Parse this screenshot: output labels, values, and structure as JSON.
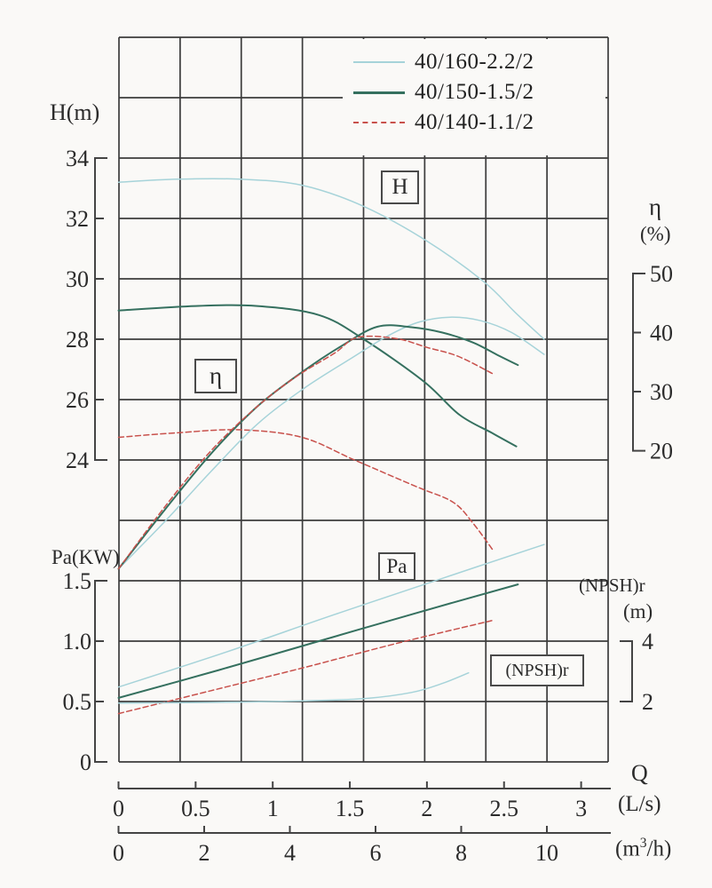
{
  "legend": {
    "items": [
      {
        "label": "40/160-2.2/2",
        "color": "#a6d3d9",
        "style": "solid",
        "weight": 2
      },
      {
        "label": "40/150-1.5/2",
        "color": "#35705f",
        "style": "solid",
        "weight": 3
      },
      {
        "label": "40/140-1.1/2",
        "color": "#c8514c",
        "style": "dashed",
        "weight": 2
      }
    ]
  },
  "labels": {
    "h_box": "H",
    "eta_box": "η",
    "pa_box": "Pa",
    "npshr_box": "(NPSH)r"
  },
  "axes": {
    "head": {
      "title": "H(m)",
      "ticks": [
        "34",
        "32",
        "30",
        "28",
        "26",
        "24"
      ]
    },
    "power": {
      "title": "Pa(KW)",
      "ticks": [
        "1.5",
        "1.0",
        "0.5",
        "0"
      ]
    },
    "efficiency": {
      "title": "η",
      "unit": "(%)",
      "ticks": [
        "50",
        "40",
        "30",
        "20"
      ]
    },
    "npshr": {
      "title": "(NPSH)r",
      "unit": "(m)",
      "ticks": [
        "4",
        "2"
      ]
    },
    "flow": {
      "title": "Q",
      "unit_ls": "(L/s)",
      "ticks_ls": [
        "0",
        "0.5",
        "1",
        "1.5",
        "2",
        "2.5",
        "3"
      ],
      "unit_m3h_prefix": "(m",
      "unit_m3h_sup": "3",
      "unit_m3h_suffix": "/h)",
      "ticks_m3h": [
        "0",
        "2",
        "4",
        "6",
        "8",
        "10"
      ]
    }
  },
  "chart_data": {
    "type": "line",
    "title": "",
    "x_axis": {
      "label": "Q",
      "units": [
        "L/s",
        "m3/h"
      ],
      "range_ls": [
        0,
        3.17
      ],
      "ticks_ls": [
        0,
        0.5,
        1,
        1.5,
        2,
        2.5,
        3
      ],
      "ticks_m3h": [
        0,
        2,
        4,
        6,
        8,
        10
      ]
    },
    "y_axes": [
      {
        "id": "H",
        "label": "H(m)",
        "ticks": [
          34,
          32,
          30,
          28,
          26,
          24
        ]
      },
      {
        "id": "Pa",
        "label": "Pa(KW)",
        "ticks": [
          1.5,
          1.0,
          0.5,
          0
        ]
      },
      {
        "id": "eta",
        "label": "eta (%)",
        "ticks": [
          50,
          40,
          30,
          20
        ]
      },
      {
        "id": "NPSHr",
        "label": "(NPSH)r (m)",
        "ticks": [
          4,
          2
        ]
      }
    ],
    "grid": "on",
    "legend_position": "top-right",
    "series": [
      {
        "pump": "40/160-2.2/2",
        "quantity": "H",
        "color": "#a6d3d9",
        "dash": false,
        "width": 1.5,
        "Q": [
          0,
          0.38,
          0.79,
          1.19,
          1.59,
          2.0,
          2.37,
          2.57,
          2.76
        ],
        "values": [
          33.2,
          33.3,
          33.3,
          33.1,
          32.4,
          31.25,
          29.9,
          28.9,
          28.0
        ]
      },
      {
        "pump": "40/150-1.5/2",
        "quantity": "H",
        "color": "#35705f",
        "dash": false,
        "width": 2,
        "Q": [
          0,
          0.5,
          0.9,
          1.3,
          1.59,
          1.98,
          2.21,
          2.42,
          2.58
        ],
        "values": [
          28.95,
          29.1,
          29.1,
          28.8,
          28.0,
          26.6,
          25.5,
          24.9,
          24.45
        ]
      },
      {
        "pump": "40/140-1.1/2",
        "quantity": "H",
        "color": "#c8514c",
        "dash": true,
        "width": 1.5,
        "Q": [
          0,
          0.38,
          0.79,
          1.19,
          1.53,
          1.94,
          2.17,
          2.3,
          2.43
        ],
        "values": [
          24.75,
          24.9,
          25.0,
          24.75,
          24.0,
          23.1,
          22.6,
          21.9,
          21.0
        ]
      },
      {
        "pump": "40/160-2.2/2",
        "quantity": "eta",
        "color": "#a6d3d9",
        "dash": false,
        "width": 1.5,
        "Q": [
          0,
          0.3,
          0.6,
          0.9,
          1.2,
          1.5,
          1.75,
          1.95,
          2.15,
          2.35,
          2.55,
          2.76
        ],
        "values": [
          0,
          8,
          16.5,
          24.5,
          30.5,
          35.5,
          39.5,
          41.8,
          42.6,
          42,
          40,
          36.3
        ]
      },
      {
        "pump": "40/150-1.5/2",
        "quantity": "eta",
        "color": "#35705f",
        "dash": false,
        "width": 2,
        "Q": [
          0,
          0.3,
          0.6,
          0.9,
          1.2,
          1.45,
          1.68,
          1.9,
          2.1,
          2.3,
          2.45,
          2.59
        ],
        "values": [
          0,
          10,
          19.5,
          27.5,
          33.5,
          37.8,
          41,
          40.9,
          40,
          38.3,
          36.3,
          34.5
        ]
      },
      {
        "pump": "40/140-1.1/2",
        "quantity": "eta",
        "color": "#c8514c",
        "dash": true,
        "width": 1.5,
        "Q": [
          0,
          0.3,
          0.6,
          0.9,
          1.15,
          1.4,
          1.55,
          1.8,
          2.0,
          2.2,
          2.43
        ],
        "values": [
          0,
          10.5,
          20,
          27.5,
          32.5,
          36.5,
          39.2,
          39,
          37.5,
          36,
          33
        ]
      },
      {
        "pump": "40/160-2.2/2",
        "quantity": "Pa",
        "color": "#a6d3d9",
        "dash": false,
        "width": 1.5,
        "Q": [
          0,
          0.7,
          1.4,
          2.1,
          2.76
        ],
        "values": [
          0.62,
          0.91,
          1.22,
          1.52,
          1.8
        ]
      },
      {
        "pump": "40/150-1.5/2",
        "quantity": "Pa",
        "color": "#35705f",
        "dash": false,
        "width": 2,
        "Q": [
          0,
          0.65,
          1.3,
          1.95,
          2.59
        ],
        "values": [
          0.53,
          0.76,
          1.0,
          1.24,
          1.47
        ]
      },
      {
        "pump": "40/140-1.1/2",
        "quantity": "Pa",
        "color": "#c8514c",
        "dash": true,
        "width": 1.5,
        "Q": [
          0,
          0.6,
          1.2,
          1.8,
          2.42
        ],
        "values": [
          0.4,
          0.59,
          0.78,
          0.98,
          1.17
        ]
      },
      {
        "pump": "40/160-2.2/2",
        "quantity": "NPSHr",
        "color": "#a6d3d9",
        "dash": false,
        "width": 1.5,
        "Q": [
          0,
          0.6,
          1.2,
          1.6,
          1.9,
          2.1,
          2.27
        ],
        "values": [
          1.95,
          1.97,
          2.02,
          2.1,
          2.3,
          2.6,
          2.95
        ]
      }
    ]
  }
}
